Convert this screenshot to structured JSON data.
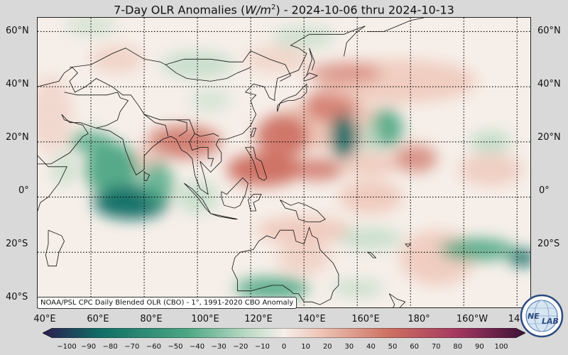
{
  "title": {
    "prefix": "7-Day OLR Anomalies (",
    "unit_base": "W/m",
    "unit_exp": "2",
    "suffix": ") - 2024-10-06 thru 2024-10-13"
  },
  "lat_labels": [
    "60°N",
    "40°N",
    "20°N",
    "0°",
    "20°S",
    "40°S"
  ],
  "lon_labels": [
    "40°E",
    "60°E",
    "80°E",
    "100°E",
    "120°E",
    "140°E",
    "160°E",
    "180°",
    "160°W",
    "14"
  ],
  "source_text": "NOAA/PSL CPC Daily Blended OLR (CBO) - 1°, 1991-2020 CBO Anomaly",
  "colorbar": {
    "ticks": [
      "−100",
      "−90",
      "−80",
      "−70",
      "−60",
      "−50",
      "−40",
      "−30",
      "−20",
      "−10",
      "0",
      "10",
      "20",
      "30",
      "40",
      "50",
      "60",
      "70",
      "80",
      "90",
      "100"
    ],
    "colors": {
      "min": "#2c1d4f",
      "neg_strong": "#0f6e66",
      "neg_mid": "#4da784",
      "neg_light": "#b8d9c3",
      "neutral": "#f6efe9",
      "pos_light": "#edc2b3",
      "pos_mid": "#cd6e60",
      "pos_strong": "#a33760",
      "max": "#3d1037"
    }
  },
  "logo": {
    "text_left": "NE",
    "text_right": "LAB",
    "icon": "psl-globe-logo-icon"
  },
  "map": {
    "extent": {
      "lon": [
        40,
        225
      ],
      "lat": [
        -40,
        65
      ]
    },
    "grid_lons": [
      60,
      80,
      100,
      120,
      140,
      160,
      180,
      200,
      220
    ],
    "grid_lats": [
      60,
      40,
      20,
      0,
      -20
    ]
  }
}
